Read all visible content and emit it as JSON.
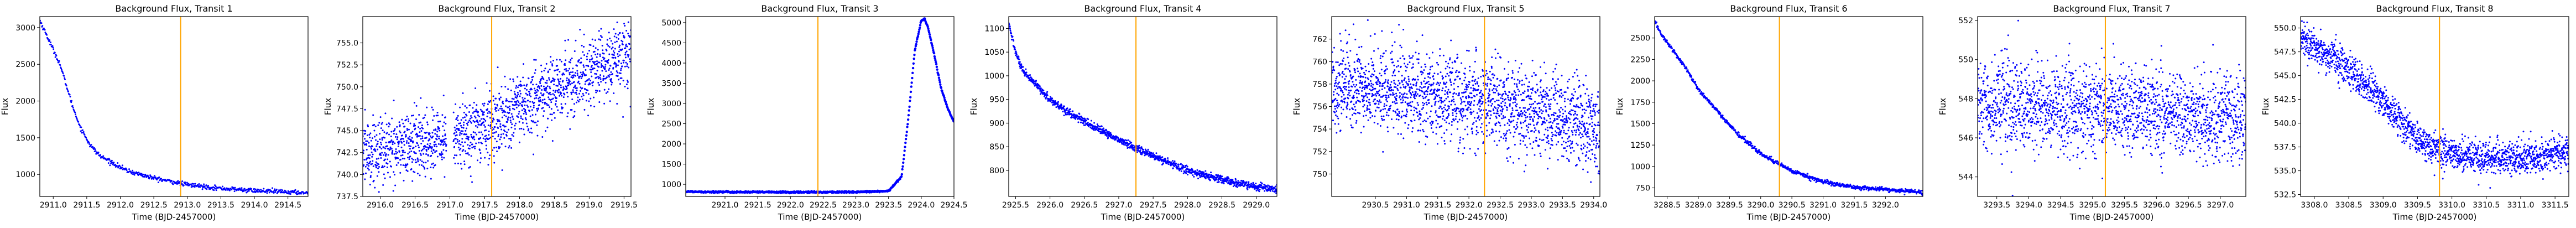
{
  "chart_data": [
    {
      "type": "scatter",
      "title": "Background Flux, Transit 1",
      "xlabel": "Time (BJD-2457000)",
      "ylabel": "Flux",
      "xlim": [
        2910.8,
        2914.8
      ],
      "ylim": [
        700,
        3150
      ],
      "xticks": [
        "2911.0",
        "2911.5",
        "2912.0",
        "2912.5",
        "2913.0",
        "2913.5",
        "2914.0",
        "2914.5"
      ],
      "xtick_values": [
        2911.0,
        2911.5,
        2912.0,
        2912.5,
        2913.0,
        2913.5,
        2914.0,
        2914.5
      ],
      "yticks": [
        "1000",
        "1500",
        "2000",
        "2500",
        "3000"
      ],
      "ytick_values": [
        1000,
        1500,
        2000,
        2500,
        3000
      ],
      "transit_x": 2912.9,
      "series_anchors": {
        "x": [
          2910.8,
          2910.9,
          2911.0,
          2911.1,
          2911.2,
          2911.3,
          2911.4,
          2911.55,
          2911.7,
          2911.9,
          2912.1,
          2912.5,
          2913.0,
          2913.5,
          2914.0,
          2914.5,
          2914.8
        ],
        "y": [
          3100,
          2900,
          2700,
          2500,
          2200,
          1900,
          1650,
          1400,
          1250,
          1150,
          1050,
          950,
          860,
          810,
          780,
          760,
          750
        ]
      },
      "noise": 15,
      "point_count": 560
    },
    {
      "type": "scatter",
      "title": "Background Flux, Transit 2",
      "xlabel": "Time (BJD-2457000)",
      "ylabel": "Flux",
      "xlim": [
        2915.75,
        2919.6
      ],
      "ylim": [
        737.5,
        758
      ],
      "xticks": [
        "2916.0",
        "2916.5",
        "2917.0",
        "2917.5",
        "2918.0",
        "2918.5",
        "2919.0",
        "2919.5"
      ],
      "xtick_values": [
        2916.0,
        2916.5,
        2917.0,
        2917.5,
        2918.0,
        2918.5,
        2919.0,
        2919.5
      ],
      "yticks": [
        "737.5",
        "740.0",
        "742.5",
        "745.0",
        "747.5",
        "750.0",
        "752.5",
        "755.0"
      ],
      "ytick_values": [
        737.5,
        740.0,
        742.5,
        745.0,
        747.5,
        750.0,
        752.5,
        755.0
      ],
      "transit_x": 2917.6,
      "series_anchors": {
        "x": [
          2915.75,
          2916.5,
          2917.0,
          2917.5,
          2918.0,
          2918.5,
          2919.0,
          2919.6
        ],
        "y": [
          742.5,
          743.5,
          744.0,
          745.5,
          747.5,
          749.5,
          751.5,
          754.0
        ]
      },
      "gap": [
        2916.95,
        2917.05
      ],
      "noise": 1.9,
      "point_count": 1700
    },
    {
      "type": "line",
      "title": "Background Flux, Transit 3",
      "xlabel": "Time (BJD-2457000)",
      "ylabel": "Flux",
      "xlim": [
        2920.4,
        2924.5
      ],
      "ylim": [
        700,
        5150
      ],
      "xticks": [
        "2921.0",
        "2921.5",
        "2922.0",
        "2922.5",
        "2923.0",
        "2923.5",
        "2924.0",
        "2924.5"
      ],
      "xtick_values": [
        2921.0,
        2921.5,
        2922.0,
        2922.5,
        2923.0,
        2923.5,
        2924.0,
        2924.5
      ],
      "yticks": [
        "1000",
        "1500",
        "2000",
        "2500",
        "3000",
        "3500",
        "4000",
        "4500",
        "5000"
      ],
      "ytick_values": [
        1000,
        1500,
        2000,
        2500,
        3000,
        3500,
        4000,
        4500,
        5000
      ],
      "transit_x": 2922.42,
      "series_anchors": {
        "x": [
          2920.4,
          2921.0,
          2922.0,
          2923.0,
          2923.5,
          2923.7,
          2923.8,
          2923.9,
          2924.0,
          2924.05,
          2924.1,
          2924.2,
          2924.3,
          2924.4,
          2924.5
        ],
        "y": [
          820,
          810,
          805,
          810,
          830,
          1200,
          2600,
          4300,
          5050,
          5100,
          4900,
          4200,
          3400,
          2900,
          2550
        ]
      },
      "noise": 10,
      "point_count": 600
    },
    {
      "type": "scatter",
      "title": "Background Flux, Transit 4",
      "xlabel": "Time (BJD-2457000)",
      "ylabel": "Flux",
      "xlim": [
        2925.4,
        2929.3
      ],
      "ylim": [
        745,
        1125
      ],
      "xticks": [
        "2925.5",
        "2926.0",
        "2926.5",
        "2927.0",
        "2927.5",
        "2928.0",
        "2928.5",
        "2929.0"
      ],
      "xtick_values": [
        2925.5,
        2926.0,
        2926.5,
        2927.0,
        2927.5,
        2928.0,
        2928.5,
        2929.0
      ],
      "yticks": [
        "800",
        "850",
        "900",
        "950",
        "1000",
        "1050",
        "1100"
      ],
      "ytick_values": [
        800,
        850,
        900,
        950,
        1000,
        1050,
        1100
      ],
      "transit_x": 2927.25,
      "series_anchors": {
        "x": [
          2925.4,
          2925.5,
          2925.6,
          2925.8,
          2926.0,
          2926.3,
          2926.6,
          2927.0,
          2927.5,
          2928.0,
          2928.5,
          2929.0,
          2929.3
        ],
        "y": [
          1110,
          1050,
          1010,
          980,
          950,
          920,
          895,
          865,
          830,
          800,
          780,
          765,
          760
        ]
      },
      "noise": 4,
      "point_count": 1200
    },
    {
      "type": "scatter",
      "title": "Background Flux, Transit 5",
      "xlabel": "Time (BJD-2457000)",
      "ylabel": "Flux",
      "xlim": [
        2929.8,
        2934.1
      ],
      "ylim": [
        748,
        764
      ],
      "xticks": [
        "2930.5",
        "2931.0",
        "2931.5",
        "2932.0",
        "2932.5",
        "2933.0",
        "2933.5",
        "2934.0"
      ],
      "xtick_values": [
        2930.5,
        2931.0,
        2931.5,
        2932.0,
        2932.5,
        2933.0,
        2933.5,
        2934.0
      ],
      "yticks": [
        "750",
        "752",
        "754",
        "756",
        "758",
        "760",
        "762"
      ],
      "ytick_values": [
        750,
        752,
        754,
        756,
        758,
        760,
        762
      ],
      "transit_x": 2932.25,
      "series_anchors": {
        "x": [
          2929.8,
          2930.5,
          2931.0,
          2931.5,
          2932.0,
          2932.5,
          2933.0,
          2933.5,
          2934.1
        ],
        "y": [
          758.0,
          757.5,
          757.2,
          757.0,
          756.5,
          756.0,
          755.5,
          755.0,
          754.0
        ]
      },
      "noise": 1.9,
      "point_count": 2000
    },
    {
      "type": "scatter",
      "title": "Background Flux, Transit 6",
      "xlabel": "Time (BJD-2457000)",
      "ylabel": "Flux",
      "xlim": [
        3288.3,
        3292.6
      ],
      "ylim": [
        650,
        2750
      ],
      "xticks": [
        "3288.5",
        "3289.0",
        "3289.5",
        "3290.0",
        "3290.5",
        "3291.0",
        "3291.5",
        "3292.0"
      ],
      "xtick_values": [
        3288.5,
        3289.0,
        3289.5,
        3290.0,
        3290.5,
        3291.0,
        3291.5,
        3292.0
      ],
      "yticks": [
        "750",
        "1000",
        "1250",
        "1500",
        "1750",
        "2000",
        "2250",
        "2500"
      ],
      "ytick_values": [
        750,
        1000,
        1250,
        1500,
        1750,
        2000,
        2250,
        2500
      ],
      "transit_x": 3290.3,
      "series_anchors": {
        "x": [
          3288.3,
          3288.4,
          3288.6,
          3288.8,
          3289.0,
          3289.3,
          3289.6,
          3290.0,
          3290.5,
          3291.0,
          3291.5,
          3292.0,
          3292.6
        ],
        "y": [
          2700,
          2550,
          2350,
          2150,
          1900,
          1650,
          1400,
          1150,
          950,
          820,
          760,
          730,
          700
        ]
      },
      "noise": 12,
      "point_count": 900
    },
    {
      "type": "scatter",
      "title": "Background Flux, Transit 7",
      "xlabel": "Time (BJD-2457000)",
      "ylabel": "Flux",
      "xlim": [
        3293.2,
        3297.4
      ],
      "ylim": [
        543,
        552.2
      ],
      "xticks": [
        "3293.5",
        "3294.0",
        "3294.5",
        "3295.0",
        "3295.5",
        "3296.0",
        "3296.5",
        "3297.0"
      ],
      "xtick_values": [
        3293.5,
        3294.0,
        3294.5,
        3295.0,
        3295.5,
        3296.0,
        3296.5,
        3297.0
      ],
      "yticks": [
        "544",
        "546",
        "548",
        "550",
        "552"
      ],
      "ytick_values": [
        544,
        546,
        548,
        550,
        552
      ],
      "transit_x": 3295.2,
      "series_anchors": {
        "x": [
          3293.2,
          3294.0,
          3295.0,
          3296.0,
          3297.4
        ],
        "y": [
          547.8,
          547.6,
          547.5,
          547.3,
          547.0
        ]
      },
      "noise": 1.1,
      "point_count": 1900
    },
    {
      "type": "scatter",
      "title": "Background Flux, Transit 8",
      "xlabel": "Time (BJD-2457000)",
      "ylabel": "Flux",
      "xlim": [
        3307.8,
        3311.7
      ],
      "ylim": [
        532.3,
        551.2
      ],
      "xticks": [
        "3308.0",
        "3308.5",
        "3309.0",
        "3309.5",
        "3310.0",
        "3310.5",
        "3311.0",
        "3311.5"
      ],
      "xtick_values": [
        3308.0,
        3308.5,
        3309.0,
        3309.5,
        3310.0,
        3310.5,
        3311.0,
        3311.5
      ],
      "yticks": [
        "532.5",
        "535.0",
        "537.5",
        "540.0",
        "542.5",
        "545.0",
        "547.5",
        "550.0"
      ],
      "ytick_values": [
        532.5,
        535.0,
        537.5,
        540.0,
        542.5,
        545.0,
        547.5,
        550.0
      ],
      "transit_x": 3309.82,
      "series_anchors": {
        "x": [
          3307.8,
          3308.0,
          3308.3,
          3308.6,
          3308.9,
          3309.2,
          3309.5,
          3309.8,
          3310.2,
          3310.6,
          3311.0,
          3311.4,
          3311.7
        ],
        "y": [
          549.0,
          548.0,
          546.8,
          545.0,
          543.0,
          540.5,
          538.5,
          537.2,
          536.6,
          536.3,
          536.3,
          536.7,
          537.0
        ]
      },
      "noise": 0.9,
      "point_count": 1700
    }
  ],
  "colors": {
    "points": "#0000ff",
    "transit_line": "#ffa500",
    "axes": "#000000",
    "background": "#ffffff"
  }
}
